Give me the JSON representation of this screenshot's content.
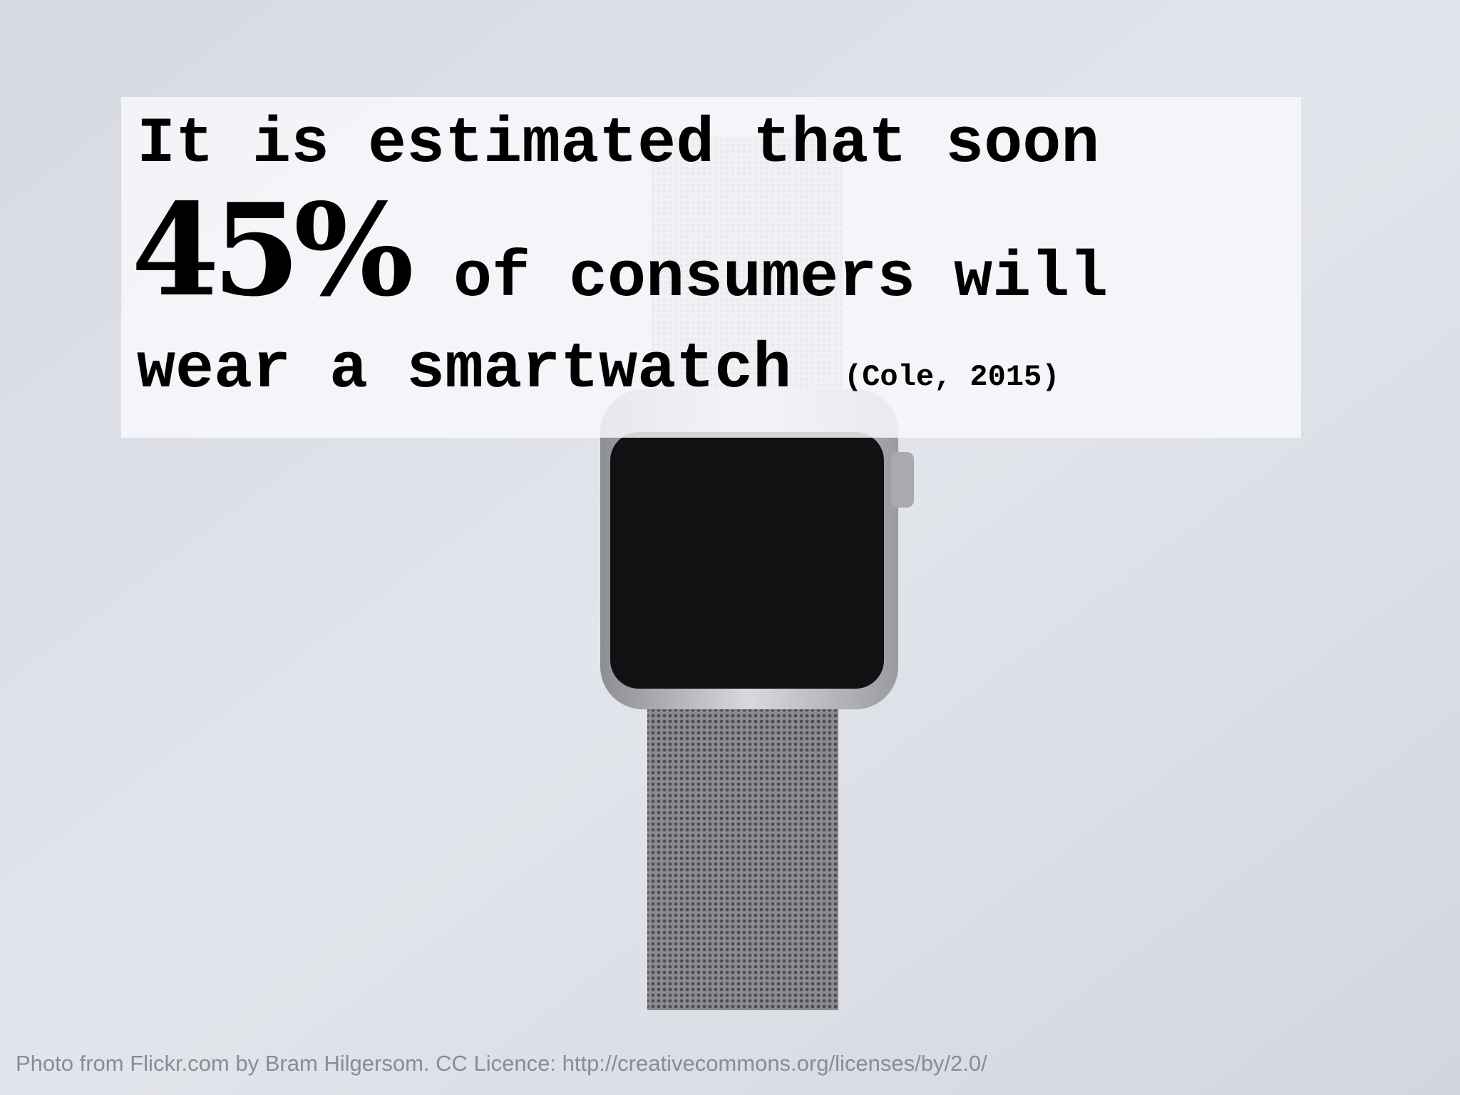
{
  "slide": {
    "line1": "It is estimated that soon",
    "stat": "45%",
    "line2": "of consumers will",
    "line3": "wear a smartwatch",
    "citation": "(Cole, 2015)",
    "caption": "Photo from Flickr.com by Bram Hilgersom. CC Licence: http://creativecommons.org/licenses/by/2.0/"
  }
}
